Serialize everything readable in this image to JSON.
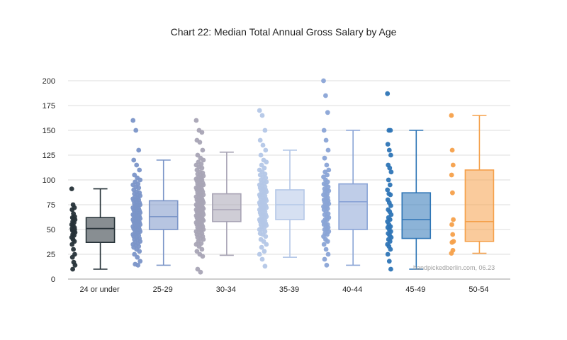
{
  "chart_data": {
    "type": "box",
    "title": "Chart 22: Median Total Annual Gross Salary by Age",
    "xlabel": "",
    "ylabel": "",
    "ylim": [
      0,
      200
    ],
    "yticks": [
      0,
      25,
      50,
      75,
      100,
      125,
      150,
      175,
      200
    ],
    "grid": true,
    "legend": "none",
    "annotation": "handpickedberlin.com, 06.23",
    "categories": [
      "24 or under",
      "25-29",
      "30-34",
      "35-39",
      "40-44",
      "45-49",
      "50-54"
    ],
    "series": [
      {
        "category": "24 or under",
        "color": "#263238",
        "box": {
          "min": 10,
          "q1": 37,
          "median": 51,
          "q3": 62,
          "max": 91
        },
        "points": [
          91,
          75,
          72,
          70,
          66,
          63,
          62,
          61,
          60,
          58,
          57,
          55,
          54,
          52,
          51,
          50,
          50,
          49,
          48,
          47,
          45,
          44,
          42,
          40,
          38,
          35,
          30,
          25,
          22,
          17,
          14,
          10
        ]
      },
      {
        "category": "25-29",
        "color": "#7b95c8",
        "box": {
          "min": 14,
          "q1": 50,
          "median": 63,
          "q3": 79,
          "max": 120
        },
        "points": [
          160,
          150,
          130,
          120,
          115,
          110,
          105,
          102,
          100,
          98,
          96,
          95,
          93,
          92,
          90,
          88,
          87,
          86,
          85,
          84,
          83,
          82,
          81,
          80,
          80,
          79,
          78,
          77,
          76,
          75,
          75,
          74,
          73,
          72,
          72,
          71,
          70,
          70,
          69,
          68,
          68,
          67,
          66,
          66,
          65,
          65,
          64,
          64,
          63,
          63,
          62,
          62,
          61,
          60,
          60,
          60,
          59,
          58,
          58,
          57,
          57,
          56,
          55,
          55,
          55,
          54,
          53,
          52,
          52,
          51,
          50,
          50,
          50,
          49,
          48,
          47,
          46,
          45,
          45,
          44,
          43,
          42,
          41,
          40,
          40,
          38,
          37,
          36,
          35,
          34,
          33,
          32,
          30,
          28,
          25,
          22,
          18,
          15,
          14
        ]
      },
      {
        "category": "30-34",
        "color": "#a8a4b5",
        "box": {
          "min": 24,
          "q1": 58,
          "median": 70,
          "q3": 86,
          "max": 128
        },
        "points": [
          160,
          150,
          148,
          140,
          138,
          130,
          125,
          122,
          120,
          118,
          116,
          115,
          113,
          112,
          110,
          108,
          107,
          106,
          105,
          104,
          103,
          102,
          101,
          100,
          100,
          99,
          98,
          97,
          96,
          95,
          95,
          94,
          93,
          92,
          91,
          90,
          90,
          89,
          88,
          87,
          86,
          85,
          85,
          84,
          83,
          82,
          81,
          80,
          80,
          79,
          78,
          78,
          77,
          76,
          76,
          75,
          75,
          74,
          74,
          73,
          72,
          72,
          71,
          71,
          70,
          70,
          70,
          69,
          69,
          68,
          68,
          67,
          66,
          66,
          65,
          65,
          64,
          64,
          63,
          62,
          62,
          61,
          60,
          60,
          60,
          59,
          58,
          58,
          57,
          56,
          55,
          55,
          54,
          53,
          52,
          51,
          50,
          50,
          49,
          48,
          47,
          46,
          45,
          44,
          43,
          42,
          41,
          40,
          38,
          36,
          35,
          33,
          30,
          28,
          25,
          23,
          10,
          7
        ]
      },
      {
        "category": "35-39",
        "color": "#b4c7e7",
        "box": {
          "min": 22,
          "q1": 60,
          "median": 75,
          "q3": 90,
          "max": 130
        },
        "points": [
          170,
          165,
          150,
          140,
          135,
          130,
          125,
          120,
          118,
          115,
          112,
          110,
          108,
          106,
          105,
          103,
          102,
          100,
          99,
          98,
          97,
          96,
          95,
          94,
          93,
          92,
          91,
          90,
          90,
          89,
          88,
          87,
          86,
          85,
          85,
          84,
          83,
          82,
          81,
          80,
          80,
          79,
          78,
          77,
          77,
          76,
          75,
          75,
          75,
          74,
          73,
          72,
          72,
          71,
          70,
          70,
          69,
          68,
          67,
          66,
          65,
          65,
          64,
          63,
          62,
          61,
          60,
          60,
          59,
          58,
          57,
          56,
          55,
          55,
          54,
          53,
          52,
          50,
          50,
          48,
          46,
          45,
          43,
          40,
          38,
          35,
          32,
          28,
          25,
          20,
          13
        ]
      },
      {
        "category": "40-44",
        "color": "#8aa4d6",
        "box": {
          "min": 14,
          "q1": 50,
          "median": 78,
          "q3": 96,
          "max": 150
        },
        "points": [
          200,
          185,
          168,
          150,
          140,
          130,
          122,
          115,
          110,
          108,
          105,
          103,
          100,
          98,
          96,
          95,
          93,
          91,
          90,
          89,
          88,
          86,
          85,
          84,
          82,
          80,
          80,
          79,
          78,
          77,
          76,
          75,
          74,
          73,
          72,
          71,
          70,
          68,
          66,
          65,
          63,
          62,
          60,
          60,
          58,
          56,
          55,
          55,
          53,
          52,
          50,
          50,
          48,
          46,
          45,
          43,
          40,
          38,
          35,
          30,
          25,
          20,
          14
        ]
      },
      {
        "category": "45-49",
        "color": "#2e75b6",
        "box": {
          "min": 10,
          "q1": 41,
          "median": 60,
          "q3": 87,
          "max": 150
        },
        "points": [
          187,
          150,
          150,
          136,
          130,
          125,
          115,
          112,
          108,
          100,
          95,
          90,
          86,
          85,
          80,
          77,
          74,
          70,
          68,
          65,
          62,
          60,
          58,
          55,
          53,
          52,
          50,
          48,
          46,
          44,
          42,
          40,
          38,
          35,
          33,
          30,
          25,
          18,
          10
        ]
      },
      {
        "category": "50-54",
        "color": "#f5a04a",
        "box": {
          "min": 26,
          "q1": 38,
          "median": 58,
          "q3": 110,
          "max": 165
        },
        "points": [
          165,
          130,
          115,
          105,
          87,
          60,
          55,
          45,
          38,
          37,
          29,
          26
        ]
      }
    ]
  }
}
